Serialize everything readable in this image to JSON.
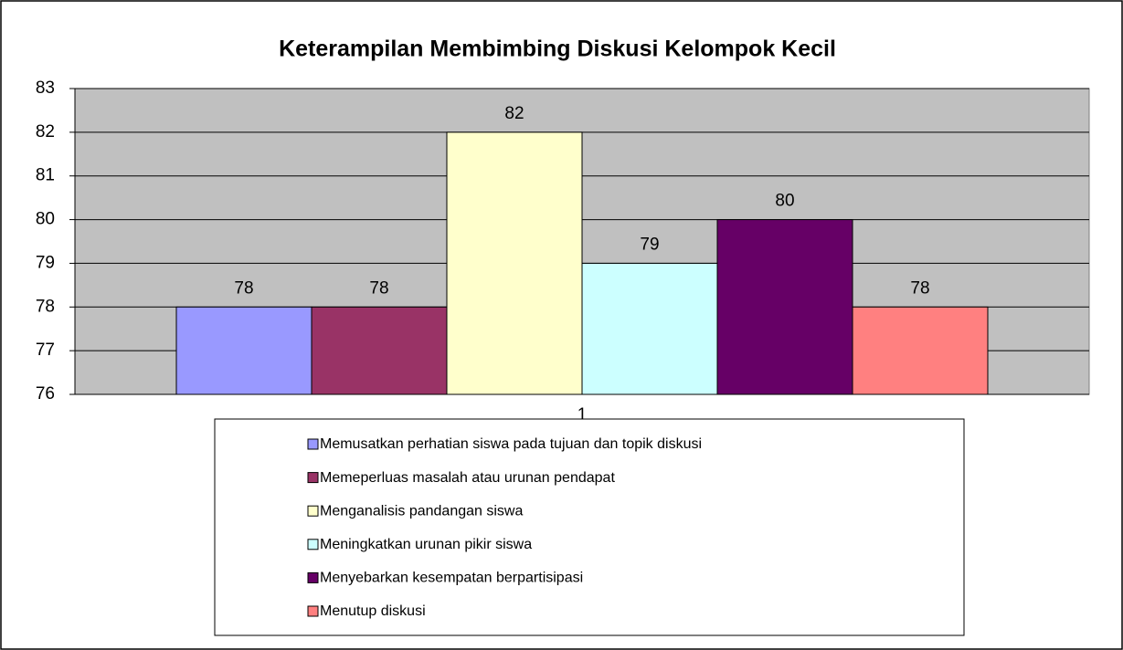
{
  "chart_data": {
    "type": "bar",
    "title": "Keterampilan Membimbing Diskusi Kelompok Kecil",
    "categories": [
      "1"
    ],
    "series": [
      {
        "name": "Memusatkan perhatian siswa pada tujuan dan topik diskusi",
        "color": "#9999ff",
        "values": [
          78
        ]
      },
      {
        "name": "Memeperluas masalah atau urunan pendapat",
        "color": "#993366",
        "values": [
          78
        ]
      },
      {
        "name": "Menganalisis pandangan siswa",
        "color": "#ffffcc",
        "values": [
          82
        ]
      },
      {
        "name": "Meningkatkan urunan pikir siswa",
        "color": "#ccffff",
        "values": [
          79
        ]
      },
      {
        "name": "Menyebarkan kesempatan berpartisipasi",
        "color": "#660066",
        "values": [
          80
        ]
      },
      {
        "name": "Menutup diskusi",
        "color": "#ff8080",
        "values": [
          78
        ]
      }
    ],
    "ylim": [
      76,
      83
    ],
    "yticks": [
      76,
      77,
      78,
      79,
      80,
      81,
      82,
      83
    ],
    "grid": true,
    "legend": "bottom",
    "plot_background": "#c0c0c0"
  }
}
